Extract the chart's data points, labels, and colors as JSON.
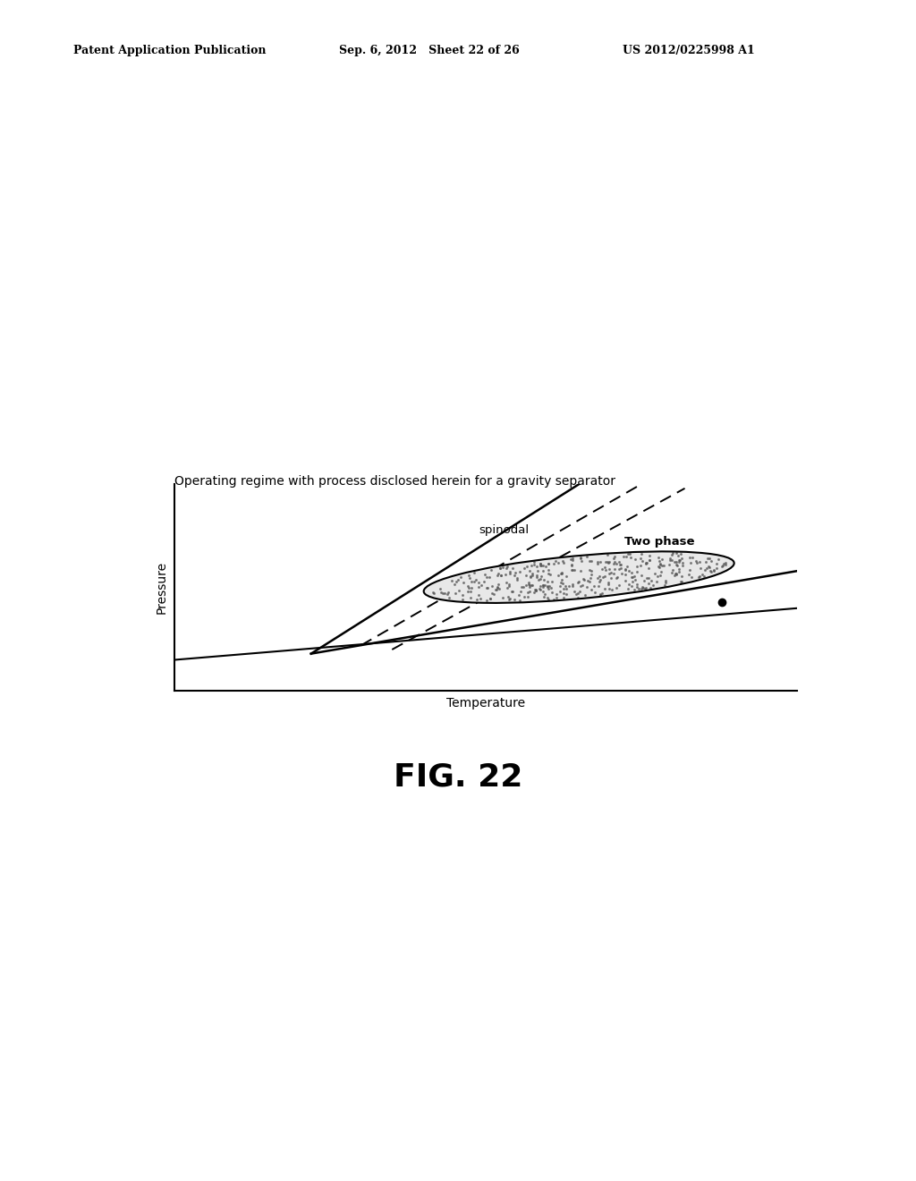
{
  "background_color": "#ffffff",
  "header_left": "Patent Application Publication",
  "header_center": "Sep. 6, 2012   Sheet 22 of 26",
  "header_right": "US 2012/0225998 A1",
  "caption": "Operating regime with process disclosed herein for a gravity separator",
  "xlabel": "Temperature",
  "ylabel": "Pressure",
  "fig_label": "FIG. 22",
  "spinodal_label": "spinodal",
  "two_phase_label": "Two phase",
  "header_fontsize": 9,
  "caption_fontsize": 10,
  "axis_label_fontsize": 10,
  "fig_label_fontsize": 26
}
